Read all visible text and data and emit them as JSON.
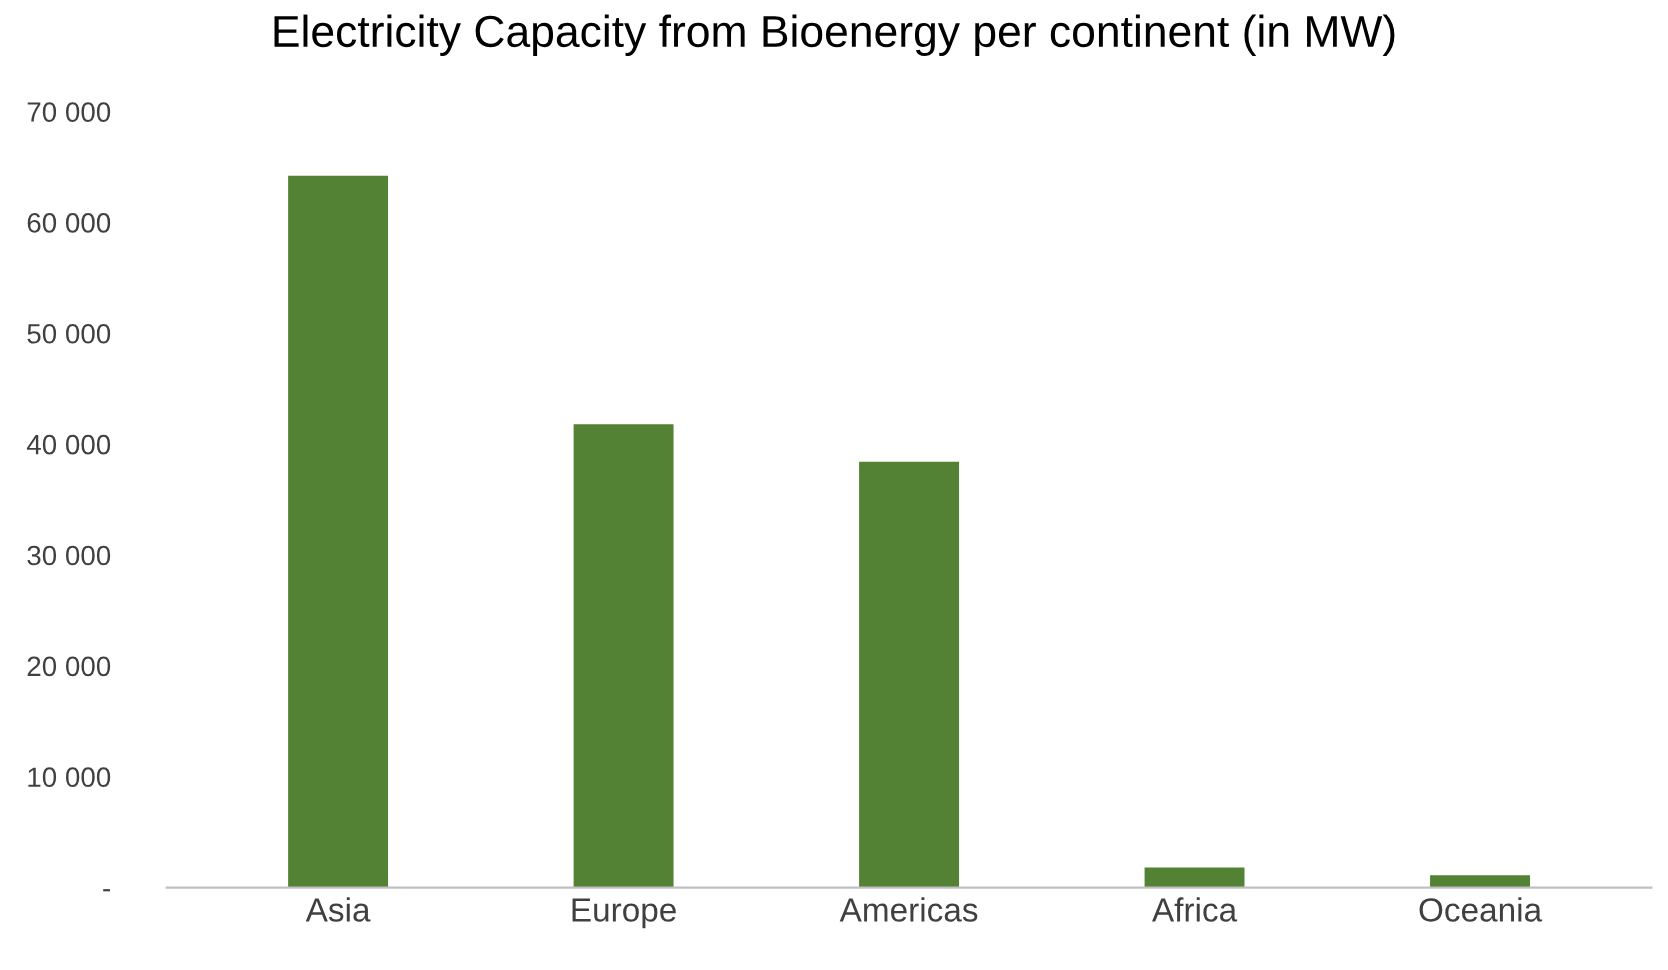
{
  "chart_data": {
    "type": "bar",
    "title": "Electricity Capacity from Bioenergy per continent (in MW)",
    "categories": [
      "Asia",
      "Europe",
      "Americas",
      "Africa",
      "Oceania"
    ],
    "values": [
      64200,
      41800,
      38400,
      1800,
      1100
    ],
    "color": "#548235",
    "ylim": [
      0,
      70000
    ],
    "yticks": [
      {
        "value": 0,
        "label": "-"
      },
      {
        "value": 10000,
        "label": "10 000"
      },
      {
        "value": 20000,
        "label": "20 000"
      },
      {
        "value": 30000,
        "label": "30 000"
      },
      {
        "value": 40000,
        "label": "40 000"
      },
      {
        "value": 50000,
        "label": "50 000"
      },
      {
        "value": 60000,
        "label": "60 000"
      },
      {
        "value": 70000,
        "label": "70 000"
      }
    ],
    "grid": false,
    "legend": false
  }
}
